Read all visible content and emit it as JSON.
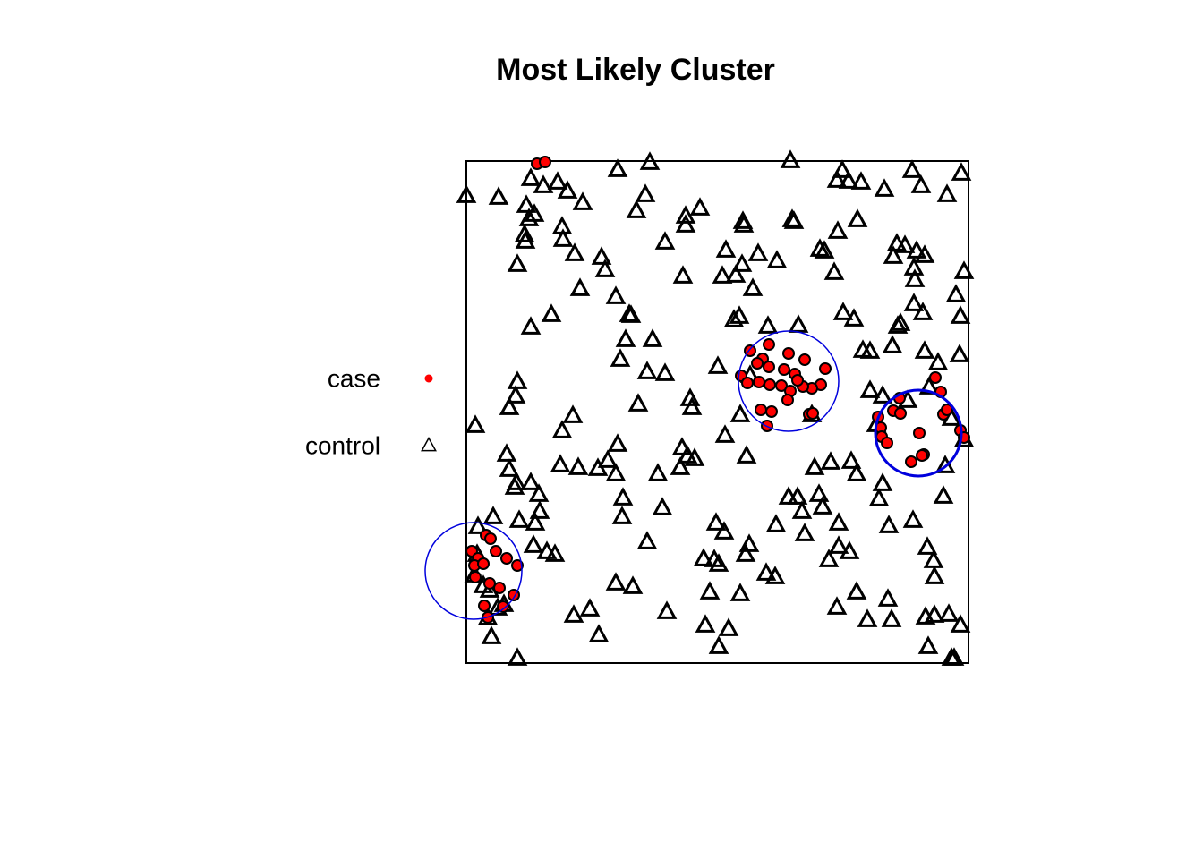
{
  "chart_data": {
    "type": "scatter",
    "title": "Most Likely Cluster",
    "xlim": [
      521,
      1082
    ],
    "ylim": [
      741,
      180
    ],
    "legend": "left",
    "series": [
      {
        "name": "control",
        "color": "#000000",
        "marker": "triangle",
        "x": [
          521,
          557,
          578,
          531,
          549,
          545,
          534,
          551,
          593,
          607,
          623,
          634,
          651,
          588,
          597,
          591,
          628,
          586,
          629,
          587,
          642,
          578,
          672,
          676,
          648,
          688,
          703,
          705,
          616,
          593,
          690,
          726,
          721,
          711,
          766,
          782,
          766,
          743,
          763,
          830,
          831,
          887,
          885,
          883,
          958,
          936,
          941,
          948,
          935,
          962,
          988,
          1019,
          1029,
          1058,
          1074,
          1002,
          1011,
          1024,
          1033,
          1021,
          998,
          1022,
          1077,
          1068,
          1073,
          1021,
          1031,
          1006,
          1003,
          997,
          1033,
          1048,
          1072,
          916,
          921,
          932,
          868,
          847,
          829,
          822,
          807,
          841,
          811,
          826,
          820,
          858,
          892,
          942,
          954,
          964,
          972,
          972,
          986,
          1038,
          699,
          729,
          693,
          723,
          743,
          802,
          578,
          576,
          569,
          713,
          771,
          773,
          838,
          827,
          640,
          628,
          690,
          810,
          762,
          768,
          776,
          834,
          566,
          569,
          577,
          575,
          593,
          602,
          626,
          646,
          668,
          679,
          688,
          735,
          760,
          696,
          695,
          740,
          603,
          580,
          598,
          596,
          611,
          620,
          723,
          688,
          707,
          641,
          659,
          669,
          745,
          788,
          814,
          803,
          800,
          809,
          837,
          833,
          786,
          798,
          803,
          793,
          827,
          856,
          866,
          867,
          881,
          891,
          899,
          915,
          910,
          928,
          951,
          957,
          919,
          896,
          937,
          937,
          949,
          926,
          986,
          982,
          993,
          1020,
          1054,
          1056,
          1036,
          1043,
          1044,
          957,
          935,
          969,
          992,
          996,
          1034,
          1044,
          1060,
          1073,
          1037,
          1063,
          1066,
          907,
          979,
          1077,
          1063,
          1014,
          533,
          540,
          547,
          556,
          563,
          530
        ],
        "values": [
          219,
          221,
          736,
          476,
          712,
          691,
          589,
          578,
          200,
          208,
          204,
          214,
          227,
          230,
          240,
          245,
          254,
          263,
          268,
          270,
          284,
          296,
          288,
          302,
          323,
          332,
          352,
          353,
          352,
          366,
          190,
          182,
          218,
          236,
          242,
          233,
          252,
          271,
          309,
          248,
          252,
          248,
          246,
          180,
          246,
          259,
          191,
          203,
          202,
          204,
          212,
          191,
          208,
          218,
          194,
          273,
          275,
          281,
          286,
          300,
          287,
          313,
          304,
          330,
          354,
          340,
          350,
          362,
          365,
          387,
          393,
          406,
          397,
          279,
          281,
          305,
          292,
          284,
          296,
          308,
          309,
          323,
          280,
          354,
          358,
          365,
          364,
          350,
          357,
          392,
          393,
          437,
          443,
          433,
          380,
          380,
          402,
          416,
          418,
          410,
          427,
          443,
          456,
          452,
          446,
          456,
          420,
          464,
          465,
          482,
          497,
          487,
          501,
          510,
          513,
          510,
          508,
          525,
          540,
          545,
          540,
          553,
          520,
          523,
          524,
          515,
          530,
          530,
          523,
          557,
          578,
          568,
          572,
          582,
          585,
          610,
          617,
          620,
          606,
          652,
          656,
          688,
          681,
          710,
          684,
          699,
          703,
          723,
          585,
          595,
          609,
          620,
          625,
          626,
          631,
          662,
          664,
          641,
          645,
          587,
          556,
          556,
          597,
          553,
          523,
          517,
          516,
          530,
          567,
          572,
          585,
          611,
          617,
          626,
          541,
          558,
          588,
          582,
          555,
          521,
          612,
          627,
          645,
          662,
          679,
          693,
          670,
          693,
          690,
          688,
          687,
          699,
          723,
          736,
          736,
          464,
          475,
          492,
          468,
          448,
          620,
          655,
          660,
          680,
          676,
          643
        ]
      },
      {
        "name": "case",
        "color": "#ff0000",
        "marker": "circle",
        "x": [
          600,
          609,
          859,
          838,
          852,
          846,
          859,
          881,
          899,
          888,
          876,
          922,
          917,
          907,
          897,
          828,
          835,
          848,
          860,
          873,
          883,
          880,
          850,
          862,
          857,
          904,
          908,
          891,
          1045,
          1051,
          1005,
          998,
          1006,
          1054,
          1058,
          981,
          984,
          985,
          991,
          1027,
          1032,
          1030,
          1018,
          1073,
          1077,
          527,
          543,
          548,
          554,
          566,
          578,
          534,
          530,
          540,
          531,
          547,
          558,
          541,
          574,
          562,
          545
        ],
        "values": [
          183,
          181,
          385,
          392,
          401,
          406,
          410,
          395,
          402,
          418,
          413,
          412,
          430,
          434,
          432,
          420,
          428,
          427,
          430,
          431,
          437,
          447,
          458,
          460,
          476,
          463,
          462,
          425,
          422,
          438,
          445,
          459,
          462,
          463,
          458,
          466,
          478,
          488,
          495,
          484,
          508,
          509,
          516,
          481,
          489,
          616,
          598,
          602,
          616,
          624,
          632,
          624,
          632,
          630,
          645,
          652,
          657,
          677,
          665,
          678,
          690
        ]
      }
    ],
    "clusters": [
      {
        "x": 881,
        "y": 426,
        "r": 56,
        "width": 1.5
      },
      {
        "x": 1026,
        "y": 484,
        "r": 48,
        "width": 3
      },
      {
        "x": 529,
        "y": 638,
        "r": 54,
        "width": 1.5
      }
    ],
    "cluster_color": "#0000dd"
  }
}
